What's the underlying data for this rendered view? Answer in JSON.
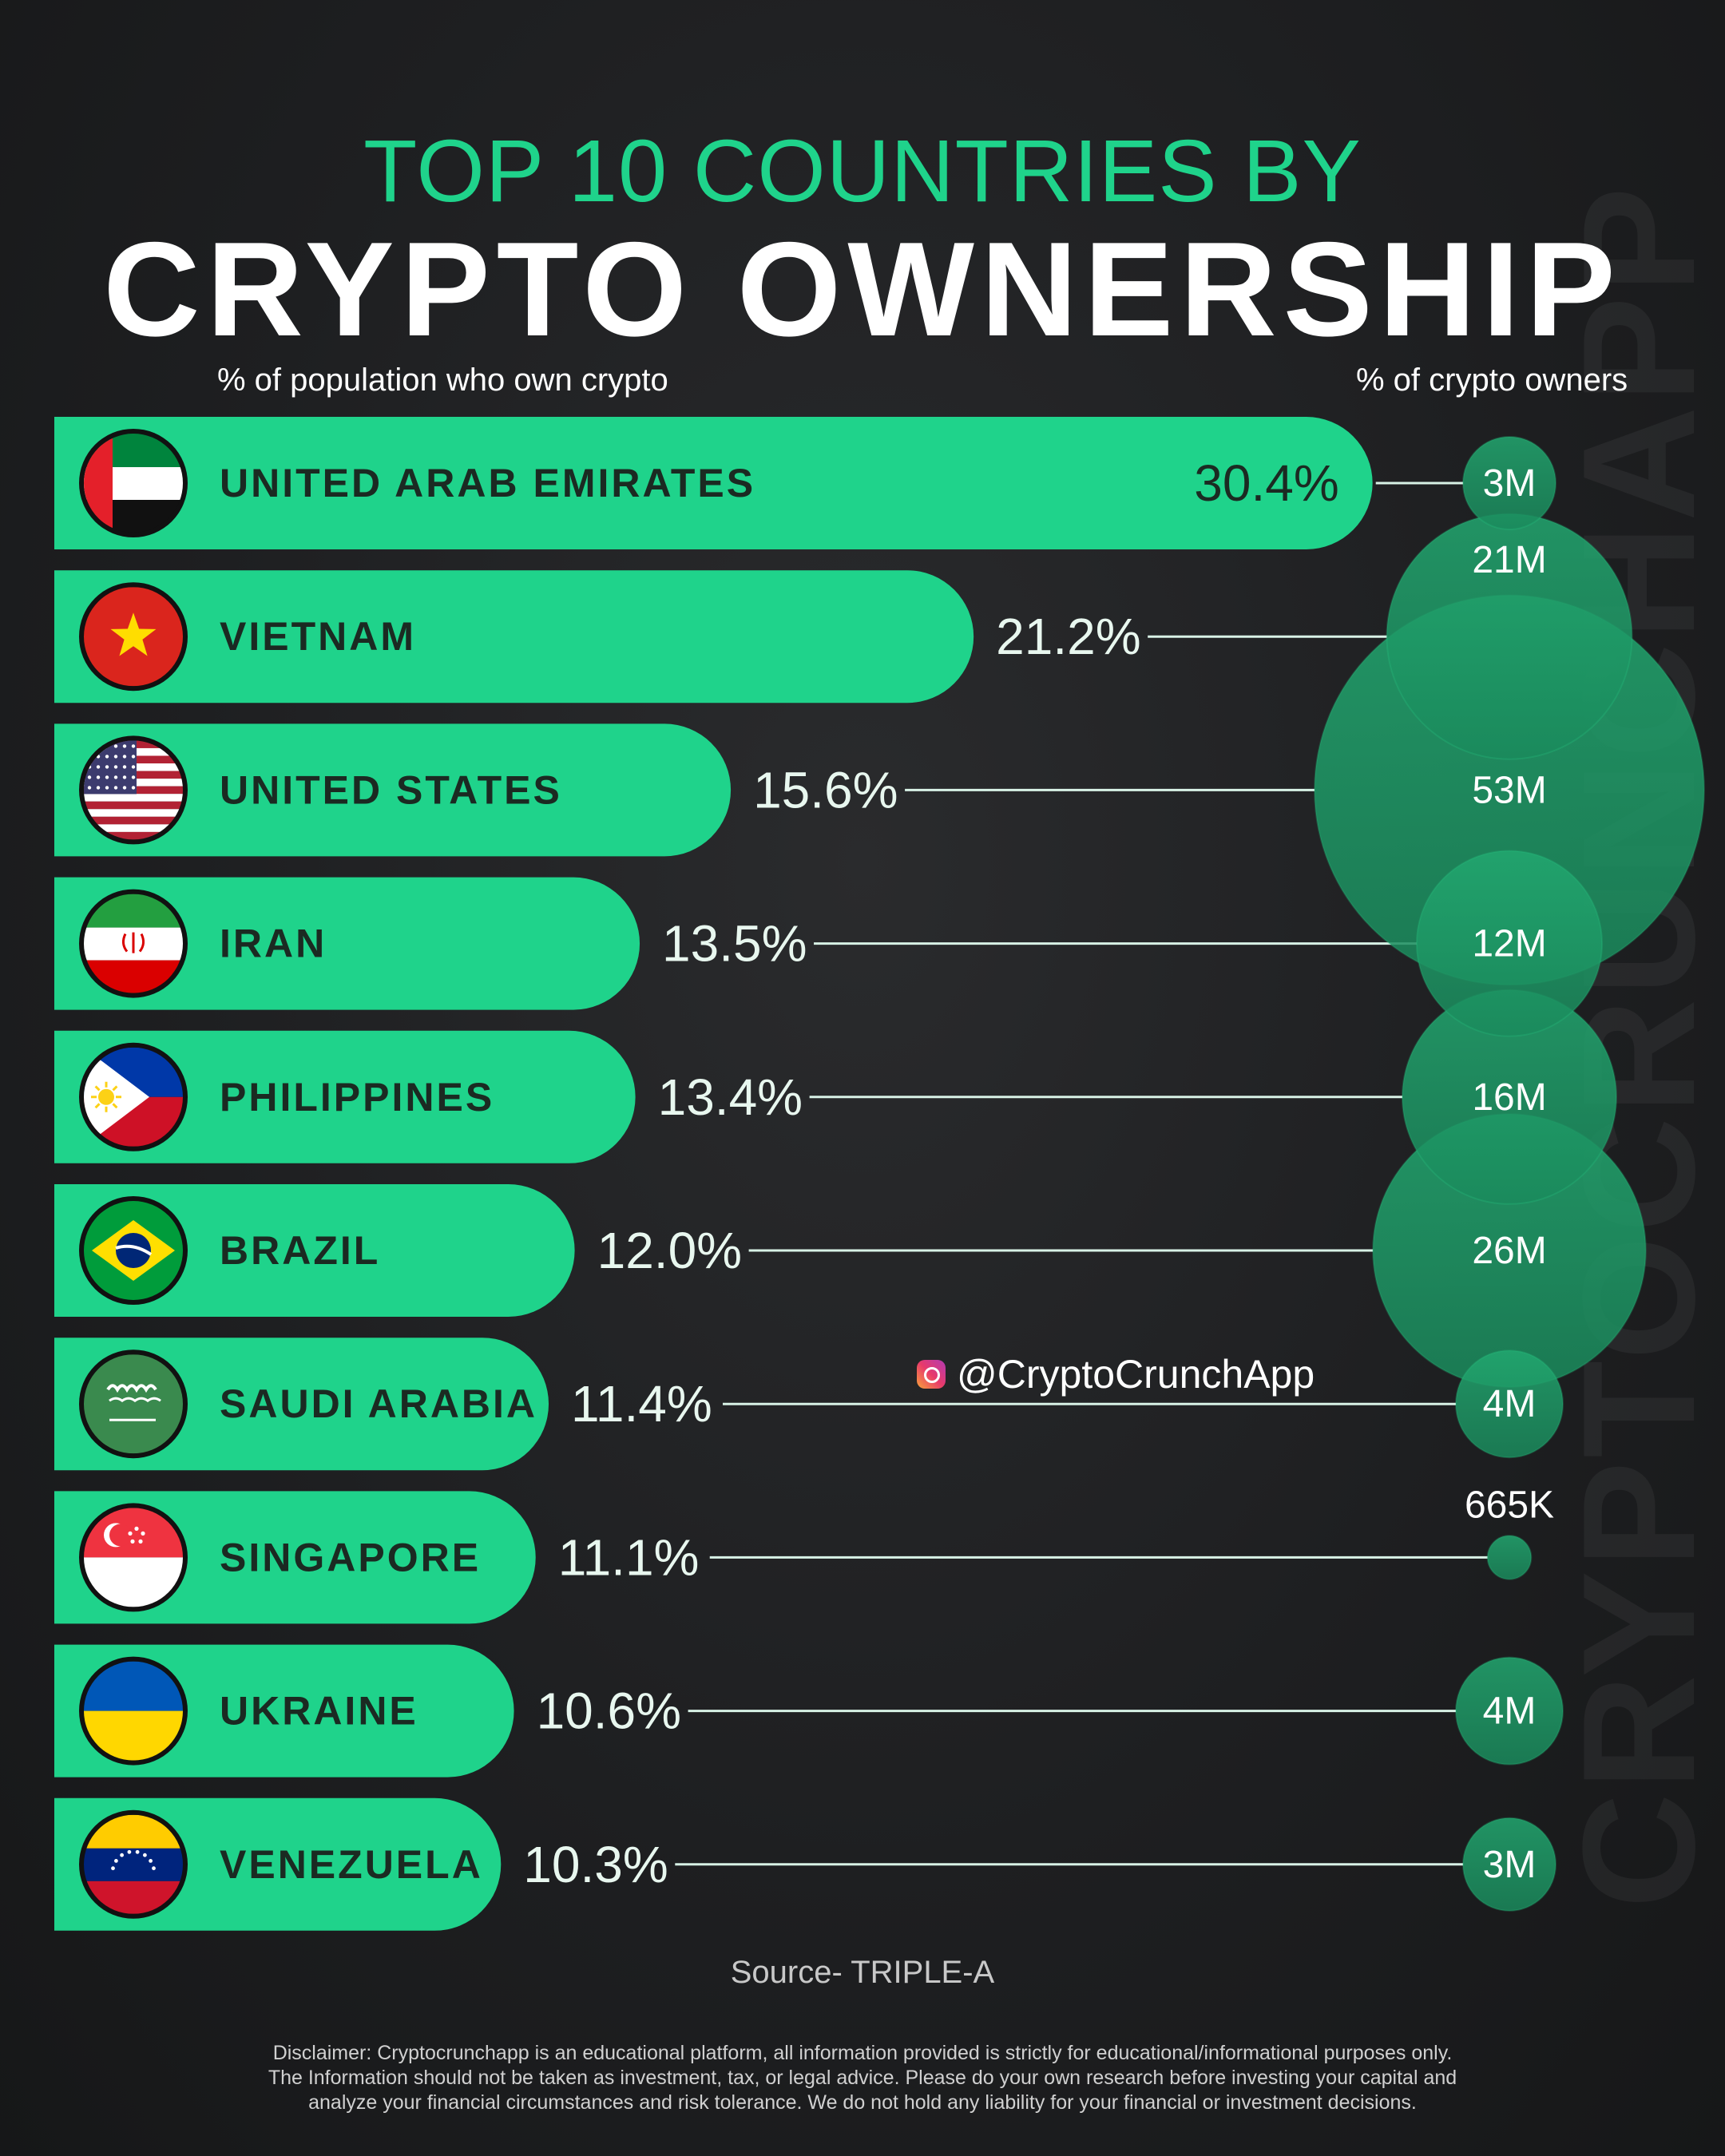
{
  "header": {
    "title_top": "TOP 10 COUNTRIES BY",
    "title_main": "CRYPTO OWNERSHIP",
    "left_subhead": "% of population who own crypto",
    "right_subhead": "% of crypto owners"
  },
  "watermark": "CRYPTOCRUNCHAPP",
  "social_handle": "@CryptoCrunchApp",
  "source": "Source- TRIPLE-A",
  "disclaimer_lines": [
    "Disclaimer: Cryptocrunchapp is an educational platform, all information provided is strictly for educational/informational purposes only.",
    "The Information should not be taken as investment, tax, or legal advice. Please do your own research before investing your capital and",
    "analyze your financial circumstances and risk tolerance. We do not hold any liability for your financial or investment decisions."
  ],
  "colors": {
    "bar": "#1fd38b",
    "bubble": "#1fa06a",
    "accent_text": "#1fd38b",
    "background": "#1e1f21"
  },
  "chart_data": {
    "type": "bar",
    "orientation": "horizontal",
    "xlim": [
      0,
      32
    ],
    "categories": [
      "UNITED ARAB EMIRATES",
      "VIETNAM",
      "UNITED STATES",
      "IRAN",
      "PHILIPPINES",
      "BRAZIL",
      "SAUDI ARABIA",
      "SINGAPORE",
      "UKRAINE",
      "VENEZUELA"
    ],
    "flag_icons": [
      "uae-flag-icon",
      "vietnam-flag-icon",
      "us-flag-icon",
      "iran-flag-icon",
      "philippines-flag-icon",
      "brazil-flag-icon",
      "saudi-arabia-flag-icon",
      "singapore-flag-icon",
      "ukraine-flag-icon",
      "venezuela-flag-icon"
    ],
    "series": [
      {
        "values": [
          30.4,
          21.2,
          15.6,
          13.5,
          13.4,
          12.0,
          11.4,
          11.1,
          10.6,
          10.3
        ],
        "labels": [
          "30.4%",
          "21.2%",
          "15.6%",
          "13.5%",
          "13.4%",
          "12.0%",
          "11.4%",
          "11.1%",
          "10.6%",
          "10.3%"
        ]
      },
      {
        "values": [
          3000000,
          21000000,
          53000000,
          12000000,
          16000000,
          26000000,
          4000000,
          665000,
          4000000,
          3000000
        ],
        "labels": [
          "3M",
          "21M",
          "53M",
          "12M",
          "16M",
          "26M",
          "4M",
          "665K",
          "4M",
          "3M"
        ]
      }
    ]
  }
}
